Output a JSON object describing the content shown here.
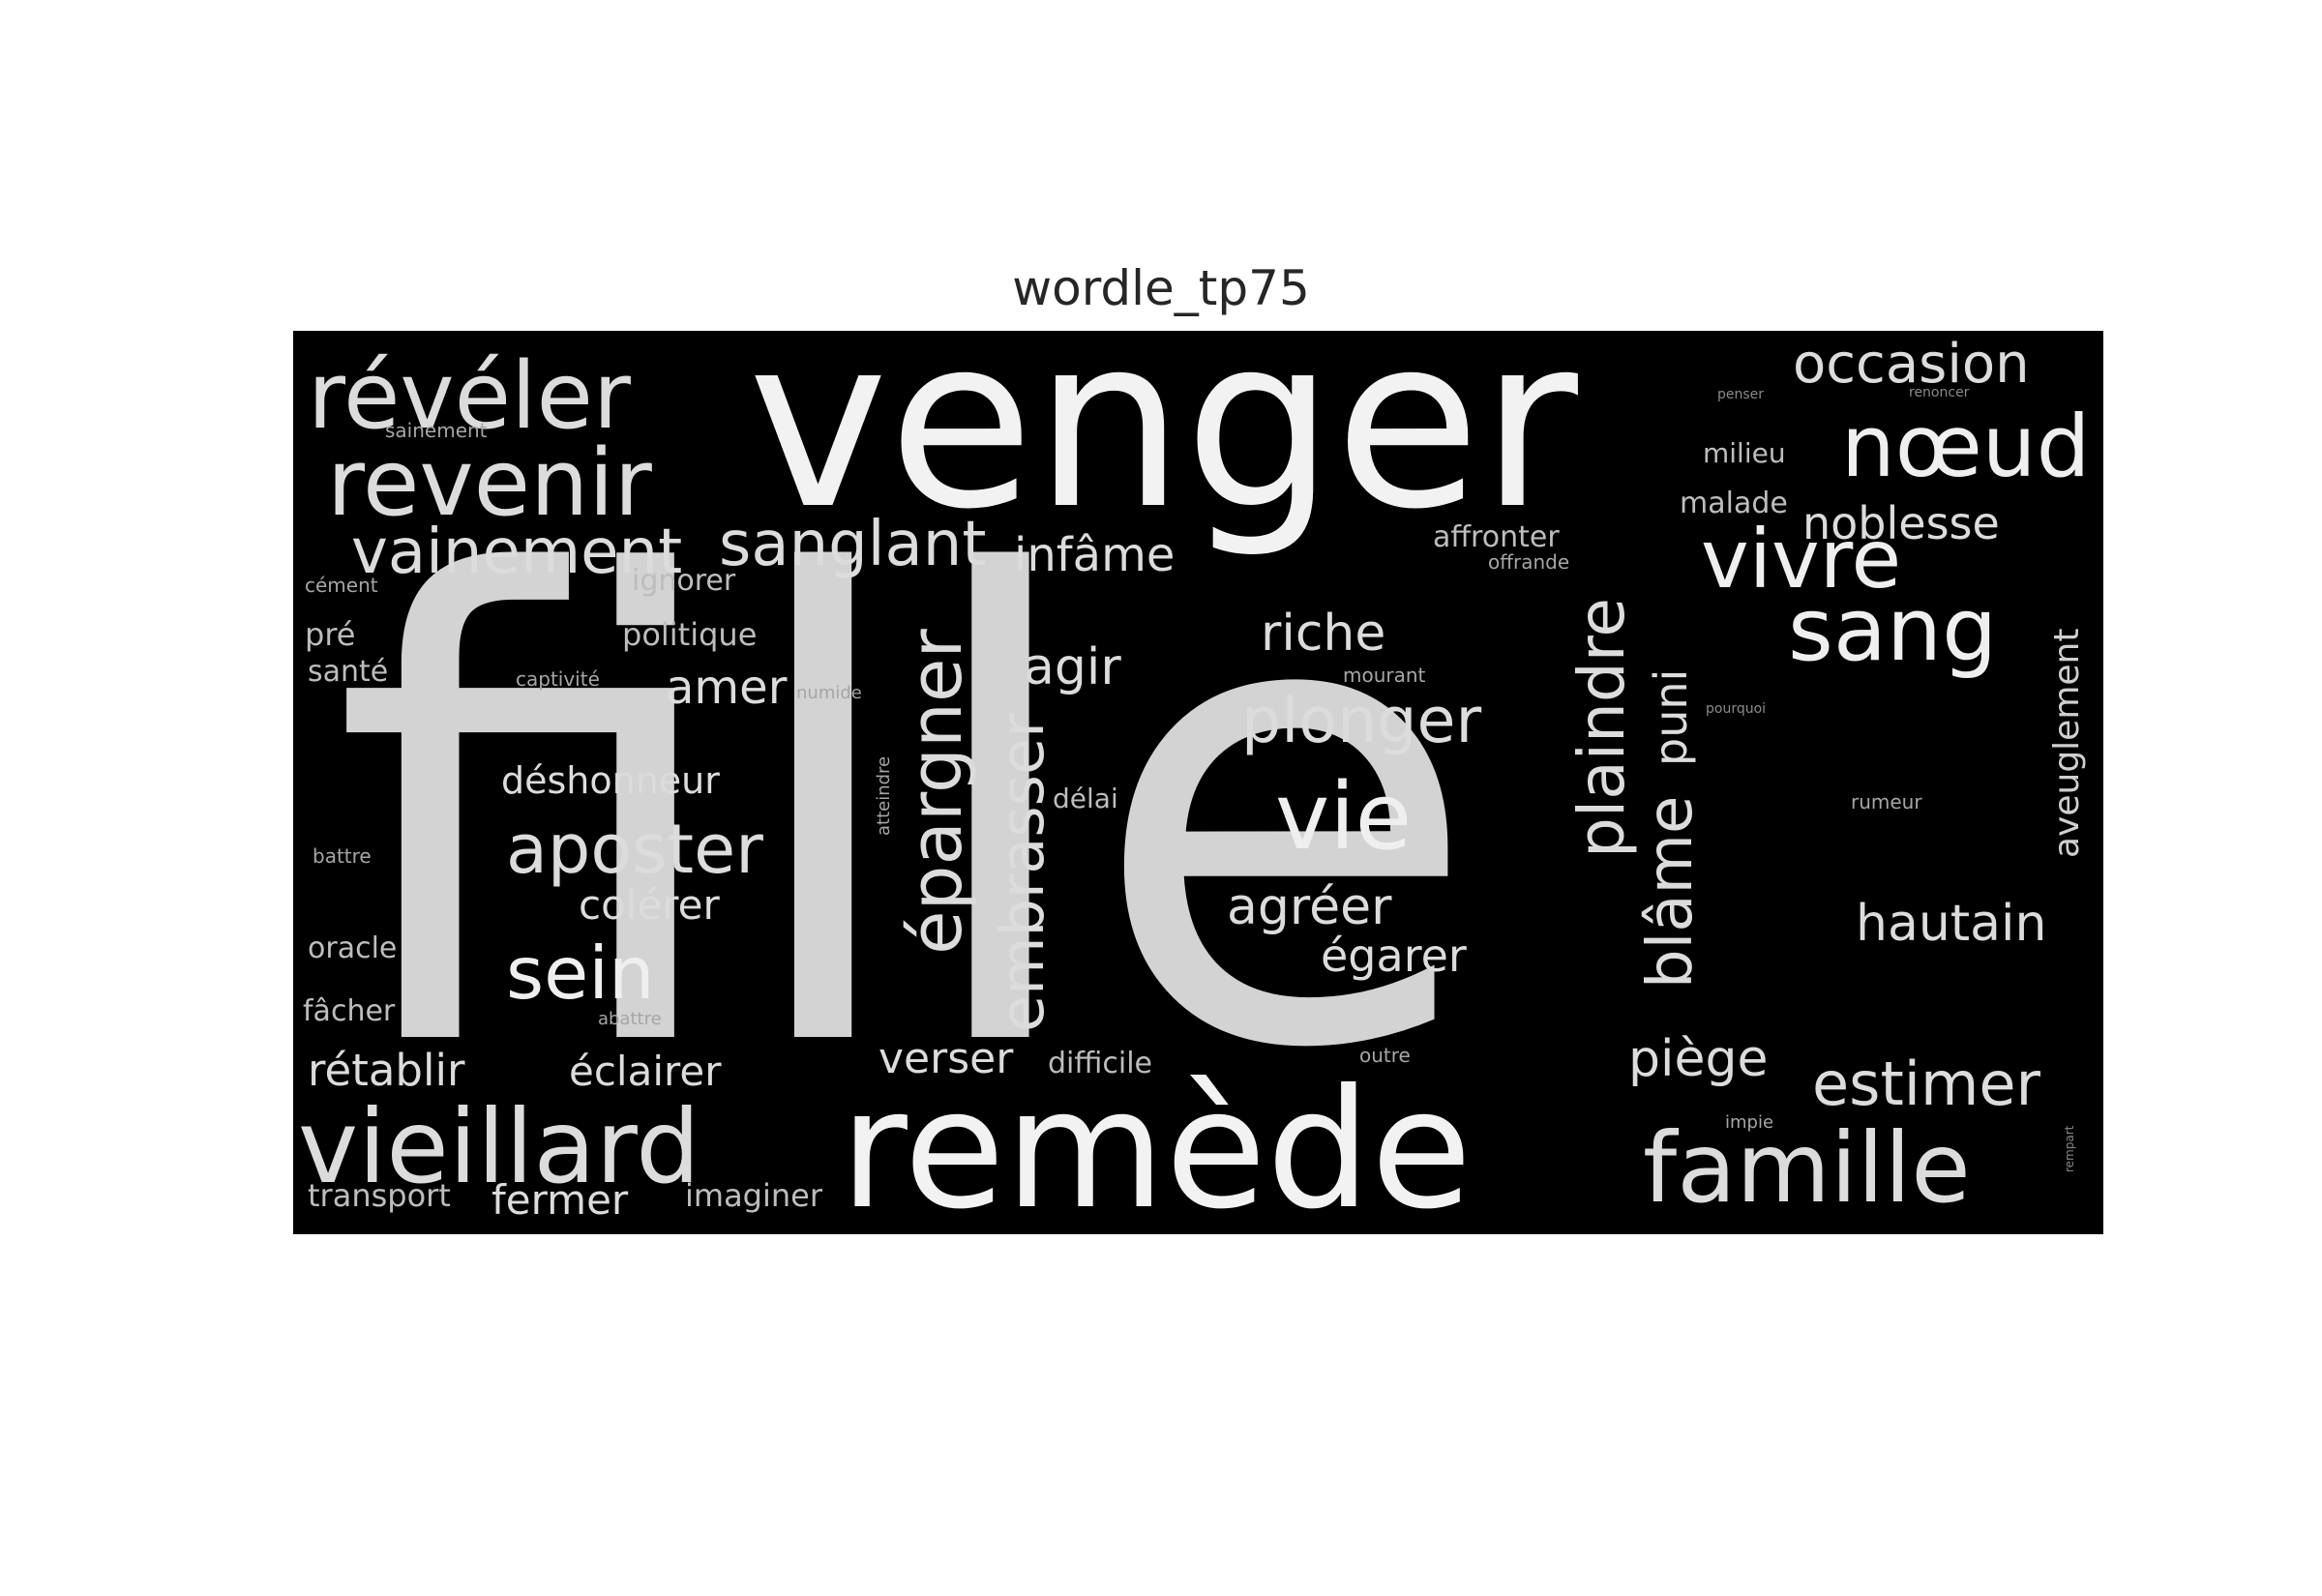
{
  "figure": {
    "title": "wordle_tp75",
    "background": "#000000"
  },
  "word_cloud": {
    "words": [
      {
        "text": "fille",
        "color": "#d3d3d3"
      },
      {
        "text": "venger",
        "color": "#f2f2f2"
      },
      {
        "text": "remède",
        "color": "#f2f2f2"
      },
      {
        "text": "révéler",
        "color": "#dcdcdc"
      },
      {
        "text": "revenir",
        "color": "#dcdcdc"
      },
      {
        "text": "vainement",
        "color": "#dcdcdc"
      },
      {
        "text": "sanglant",
        "color": "#dcdcdc"
      },
      {
        "text": "infâme",
        "color": "#dcdcdc"
      },
      {
        "text": "occasion",
        "color": "#dcdcdc"
      },
      {
        "text": "nœud",
        "color": "#efefef"
      },
      {
        "text": "noblesse",
        "color": "#dcdcdc"
      },
      {
        "text": "vivre",
        "color": "#efefef"
      },
      {
        "text": "sang",
        "color": "#efefef"
      },
      {
        "text": "vieillard",
        "color": "#dcdcdc"
      },
      {
        "text": "famille",
        "color": "#dcdcdc"
      },
      {
        "text": "estimer",
        "color": "#dcdcdc"
      },
      {
        "text": "hautain",
        "color": "#dcdcdc"
      },
      {
        "text": "aposter",
        "color": "#dcdcdc"
      },
      {
        "text": "sein",
        "color": "#efefef"
      },
      {
        "text": "vie",
        "color": "#efefef"
      },
      {
        "text": "plonger",
        "color": "#dcdcdc"
      },
      {
        "text": "riche",
        "color": "#dcdcdc"
      },
      {
        "text": "agir",
        "color": "#dcdcdc"
      },
      {
        "text": "amer",
        "color": "#dcdcdc"
      },
      {
        "text": "agréer",
        "color": "#dcdcdc"
      },
      {
        "text": "égarer",
        "color": "#dcdcdc"
      },
      {
        "text": "colérer",
        "color": "#dcdcdc"
      },
      {
        "text": "déshonneur",
        "color": "#dcdcdc"
      },
      {
        "text": "rétablir",
        "color": "#dcdcdc"
      },
      {
        "text": "éclairer",
        "color": "#dcdcdc"
      },
      {
        "text": "verser",
        "color": "#dcdcdc"
      },
      {
        "text": "piège",
        "color": "#dcdcdc"
      },
      {
        "text": "fermer",
        "color": "#dcdcdc"
      },
      {
        "text": "transport",
        "color": "#bdbdbd"
      },
      {
        "text": "imaginer",
        "color": "#bdbdbd"
      },
      {
        "text": "difficile",
        "color": "#bdbdbd"
      },
      {
        "text": "épargner",
        "color": "#dcdcdc"
      },
      {
        "text": "embrasser",
        "color": "#dcdcdc"
      },
      {
        "text": "plaindre",
        "color": "#dcdcdc"
      },
      {
        "text": "puni",
        "color": "#dcdcdc"
      },
      {
        "text": "blâme",
        "color": "#dcdcdc"
      },
      {
        "text": "aveuglement",
        "color": "#cfcfcf"
      },
      {
        "text": "affronter",
        "color": "#bdbdbd"
      },
      {
        "text": "milieu",
        "color": "#bdbdbd"
      },
      {
        "text": "malade",
        "color": "#bdbdbd"
      },
      {
        "text": "ignorer",
        "color": "#bdbdbd"
      },
      {
        "text": "politique",
        "color": "#bdbdbd"
      },
      {
        "text": "pré",
        "color": "#bdbdbd"
      },
      {
        "text": "santé",
        "color": "#bdbdbd"
      },
      {
        "text": "oracle",
        "color": "#bdbdbd"
      },
      {
        "text": "fâcher",
        "color": "#bdbdbd"
      },
      {
        "text": "délai",
        "color": "#bdbdbd"
      },
      {
        "text": "captivité",
        "color": "#a6a6a6"
      },
      {
        "text": "numide",
        "color": "#a6a6a6"
      },
      {
        "text": "atteindre",
        "color": "#a6a6a6"
      },
      {
        "text": "offrande",
        "color": "#a6a6a6"
      },
      {
        "text": "mourant",
        "color": "#a6a6a6"
      },
      {
        "text": "sainement",
        "color": "#a6a6a6"
      },
      {
        "text": "cément",
        "color": "#a6a6a6"
      },
      {
        "text": "battre",
        "color": "#a6a6a6"
      },
      {
        "text": "abattre",
        "color": "#a6a6a6"
      },
      {
        "text": "outre",
        "color": "#a6a6a6"
      },
      {
        "text": "impie",
        "color": "#a6a6a6"
      },
      {
        "text": "rumeur",
        "color": "#a6a6a6"
      },
      {
        "text": "penser",
        "color": "#8a8a8a"
      },
      {
        "text": "renoncer",
        "color": "#8a8a8a"
      },
      {
        "text": "pourquoi",
        "color": "#8a8a8a"
      },
      {
        "text": "rempart",
        "color": "#8a8a8a"
      }
    ]
  }
}
